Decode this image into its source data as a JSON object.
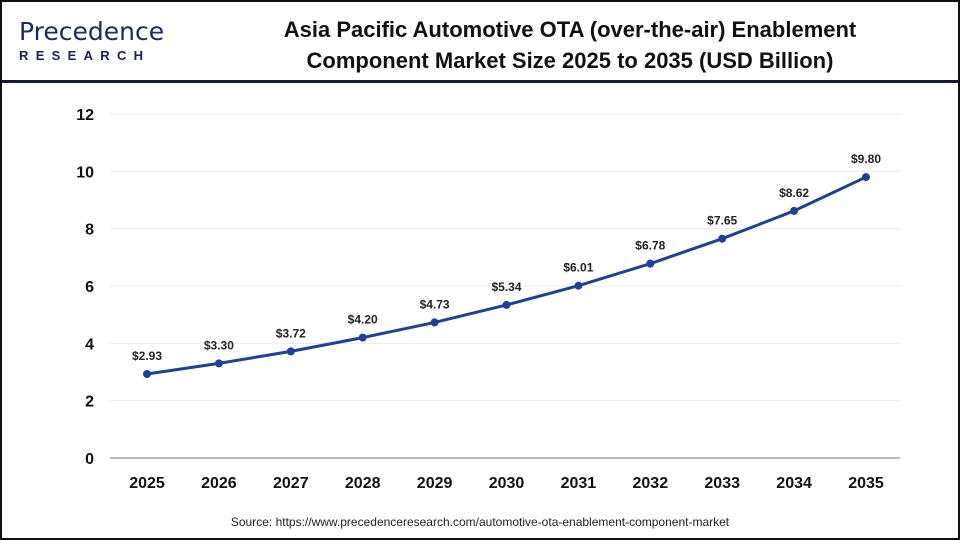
{
  "logo": {
    "text": "Precedence",
    "sub": "RESEARCH"
  },
  "title_line1": "Asia Pacific Automotive OTA (over-the-air) Enablement",
  "title_line2": "Component Market Size 2025 to 2035 (USD Billion)",
  "source": "Source: https://www.precedenceresearch.com/automotive-ota-enablement-component-market",
  "chart_data": {
    "type": "line",
    "title": "Asia Pacific Automotive OTA (over-the-air) Enablement Component Market Size 2025 to 2035 (USD Billion)",
    "categories": [
      "2025",
      "2026",
      "2027",
      "2028",
      "2029",
      "2030",
      "2031",
      "2032",
      "2033",
      "2034",
      "2035"
    ],
    "values": [
      2.93,
      3.3,
      3.72,
      4.2,
      4.73,
      5.34,
      6.01,
      6.78,
      7.65,
      8.62,
      9.8
    ],
    "data_labels": [
      "$2.93",
      "$3.30",
      "$3.72",
      "$4.20",
      "$4.73",
      "$5.34",
      "$6.01",
      "$6.78",
      "$7.65",
      "$8.62",
      "$9.80"
    ],
    "yticks": [
      "0",
      "2",
      "4",
      "6",
      "8",
      "10",
      "12"
    ],
    "ylim": [
      0,
      12
    ],
    "grid": true,
    "line_color": "#1f3f9a",
    "xlabel": "",
    "ylabel": ""
  }
}
